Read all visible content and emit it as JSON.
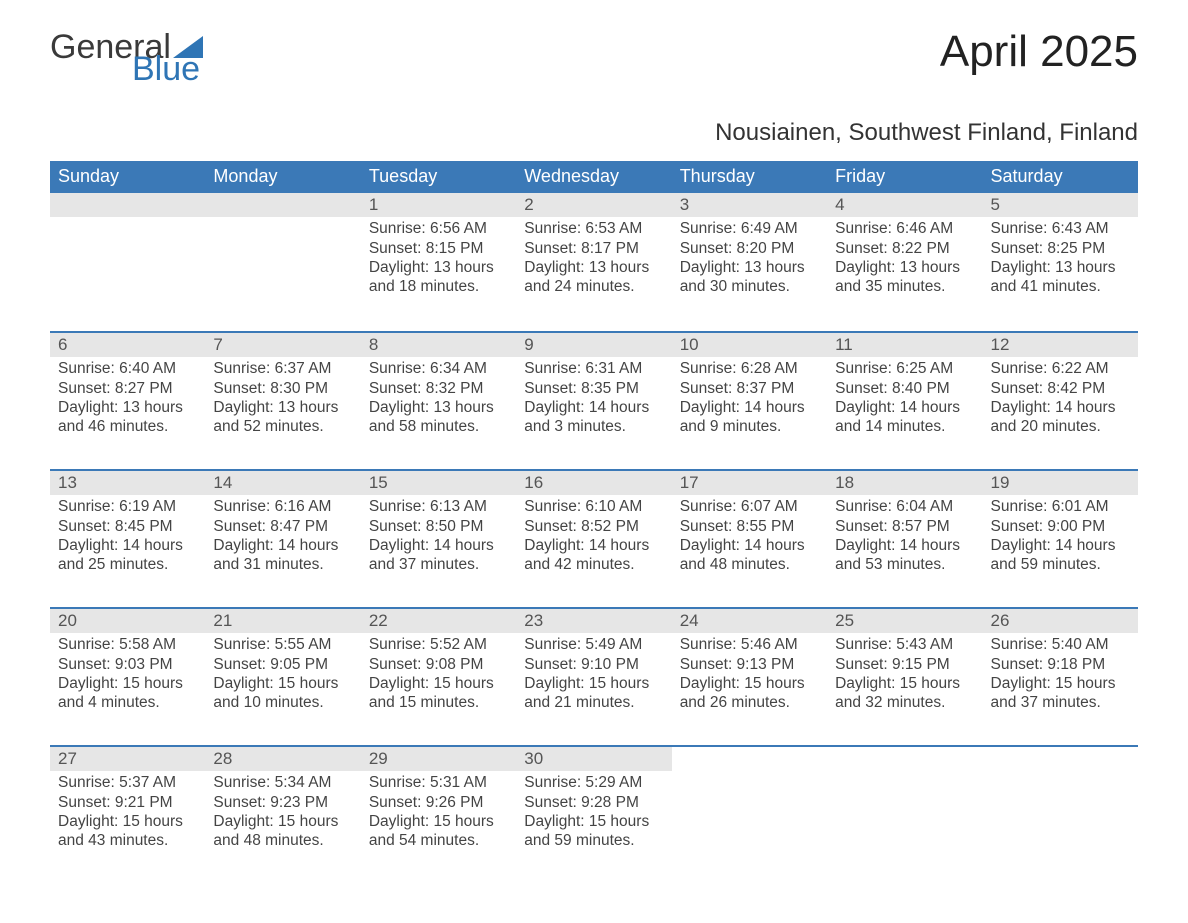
{
  "branding": {
    "logo_text_1": "General",
    "logo_text_2": "Blue",
    "logo_color_1": "#3a3a3a",
    "logo_color_2": "#2f75b5",
    "triangle_color": "#2f75b5"
  },
  "title": "April 2025",
  "location": "Nousiainen, Southwest Finland, Finland",
  "theme": {
    "header_bg": "#3b79b7",
    "header_fg": "#ffffff",
    "daynum_bg": "#e6e6e6",
    "daynum_fg": "#555555",
    "rule_color": "#3b79b7",
    "body_text": "#444444",
    "background": "#ffffff",
    "title_fontsize": 44,
    "location_fontsize": 24,
    "dow_fontsize": 18,
    "body_fontsize": 15.5
  },
  "day_headers": [
    "Sunday",
    "Monday",
    "Tuesday",
    "Wednesday",
    "Thursday",
    "Friday",
    "Saturday"
  ],
  "weeks": [
    [
      {
        "n": "",
        "l1": "",
        "l2": "",
        "l3": "",
        "l4": ""
      },
      {
        "n": "",
        "l1": "",
        "l2": "",
        "l3": "",
        "l4": ""
      },
      {
        "n": "1",
        "l1": "Sunrise: 6:56 AM",
        "l2": "Sunset: 8:15 PM",
        "l3": "Daylight: 13 hours",
        "l4": "and 18 minutes."
      },
      {
        "n": "2",
        "l1": "Sunrise: 6:53 AM",
        "l2": "Sunset: 8:17 PM",
        "l3": "Daylight: 13 hours",
        "l4": "and 24 minutes."
      },
      {
        "n": "3",
        "l1": "Sunrise: 6:49 AM",
        "l2": "Sunset: 8:20 PM",
        "l3": "Daylight: 13 hours",
        "l4": "and 30 minutes."
      },
      {
        "n": "4",
        "l1": "Sunrise: 6:46 AM",
        "l2": "Sunset: 8:22 PM",
        "l3": "Daylight: 13 hours",
        "l4": "and 35 minutes."
      },
      {
        "n": "5",
        "l1": "Sunrise: 6:43 AM",
        "l2": "Sunset: 8:25 PM",
        "l3": "Daylight: 13 hours",
        "l4": "and 41 minutes."
      }
    ],
    [
      {
        "n": "6",
        "l1": "Sunrise: 6:40 AM",
        "l2": "Sunset: 8:27 PM",
        "l3": "Daylight: 13 hours",
        "l4": "and 46 minutes."
      },
      {
        "n": "7",
        "l1": "Sunrise: 6:37 AM",
        "l2": "Sunset: 8:30 PM",
        "l3": "Daylight: 13 hours",
        "l4": "and 52 minutes."
      },
      {
        "n": "8",
        "l1": "Sunrise: 6:34 AM",
        "l2": "Sunset: 8:32 PM",
        "l3": "Daylight: 13 hours",
        "l4": "and 58 minutes."
      },
      {
        "n": "9",
        "l1": "Sunrise: 6:31 AM",
        "l2": "Sunset: 8:35 PM",
        "l3": "Daylight: 14 hours",
        "l4": "and 3 minutes."
      },
      {
        "n": "10",
        "l1": "Sunrise: 6:28 AM",
        "l2": "Sunset: 8:37 PM",
        "l3": "Daylight: 14 hours",
        "l4": "and 9 minutes."
      },
      {
        "n": "11",
        "l1": "Sunrise: 6:25 AM",
        "l2": "Sunset: 8:40 PM",
        "l3": "Daylight: 14 hours",
        "l4": "and 14 minutes."
      },
      {
        "n": "12",
        "l1": "Sunrise: 6:22 AM",
        "l2": "Sunset: 8:42 PM",
        "l3": "Daylight: 14 hours",
        "l4": "and 20 minutes."
      }
    ],
    [
      {
        "n": "13",
        "l1": "Sunrise: 6:19 AM",
        "l2": "Sunset: 8:45 PM",
        "l3": "Daylight: 14 hours",
        "l4": "and 25 minutes."
      },
      {
        "n": "14",
        "l1": "Sunrise: 6:16 AM",
        "l2": "Sunset: 8:47 PM",
        "l3": "Daylight: 14 hours",
        "l4": "and 31 minutes."
      },
      {
        "n": "15",
        "l1": "Sunrise: 6:13 AM",
        "l2": "Sunset: 8:50 PM",
        "l3": "Daylight: 14 hours",
        "l4": "and 37 minutes."
      },
      {
        "n": "16",
        "l1": "Sunrise: 6:10 AM",
        "l2": "Sunset: 8:52 PM",
        "l3": "Daylight: 14 hours",
        "l4": "and 42 minutes."
      },
      {
        "n": "17",
        "l1": "Sunrise: 6:07 AM",
        "l2": "Sunset: 8:55 PM",
        "l3": "Daylight: 14 hours",
        "l4": "and 48 minutes."
      },
      {
        "n": "18",
        "l1": "Sunrise: 6:04 AM",
        "l2": "Sunset: 8:57 PM",
        "l3": "Daylight: 14 hours",
        "l4": "and 53 minutes."
      },
      {
        "n": "19",
        "l1": "Sunrise: 6:01 AM",
        "l2": "Sunset: 9:00 PM",
        "l3": "Daylight: 14 hours",
        "l4": "and 59 minutes."
      }
    ],
    [
      {
        "n": "20",
        "l1": "Sunrise: 5:58 AM",
        "l2": "Sunset: 9:03 PM",
        "l3": "Daylight: 15 hours",
        "l4": "and 4 minutes."
      },
      {
        "n": "21",
        "l1": "Sunrise: 5:55 AM",
        "l2": "Sunset: 9:05 PM",
        "l3": "Daylight: 15 hours",
        "l4": "and 10 minutes."
      },
      {
        "n": "22",
        "l1": "Sunrise: 5:52 AM",
        "l2": "Sunset: 9:08 PM",
        "l3": "Daylight: 15 hours",
        "l4": "and 15 minutes."
      },
      {
        "n": "23",
        "l1": "Sunrise: 5:49 AM",
        "l2": "Sunset: 9:10 PM",
        "l3": "Daylight: 15 hours",
        "l4": "and 21 minutes."
      },
      {
        "n": "24",
        "l1": "Sunrise: 5:46 AM",
        "l2": "Sunset: 9:13 PM",
        "l3": "Daylight: 15 hours",
        "l4": "and 26 minutes."
      },
      {
        "n": "25",
        "l1": "Sunrise: 5:43 AM",
        "l2": "Sunset: 9:15 PM",
        "l3": "Daylight: 15 hours",
        "l4": "and 32 minutes."
      },
      {
        "n": "26",
        "l1": "Sunrise: 5:40 AM",
        "l2": "Sunset: 9:18 PM",
        "l3": "Daylight: 15 hours",
        "l4": "and 37 minutes."
      }
    ],
    [
      {
        "n": "27",
        "l1": "Sunrise: 5:37 AM",
        "l2": "Sunset: 9:21 PM",
        "l3": "Daylight: 15 hours",
        "l4": "and 43 minutes."
      },
      {
        "n": "28",
        "l1": "Sunrise: 5:34 AM",
        "l2": "Sunset: 9:23 PM",
        "l3": "Daylight: 15 hours",
        "l4": "and 48 minutes."
      },
      {
        "n": "29",
        "l1": "Sunrise: 5:31 AM",
        "l2": "Sunset: 9:26 PM",
        "l3": "Daylight: 15 hours",
        "l4": "and 54 minutes."
      },
      {
        "n": "30",
        "l1": "Sunrise: 5:29 AM",
        "l2": "Sunset: 9:28 PM",
        "l3": "Daylight: 15 hours",
        "l4": "and 59 minutes."
      },
      {
        "n": "",
        "l1": "",
        "l2": "",
        "l3": "",
        "l4": ""
      },
      {
        "n": "",
        "l1": "",
        "l2": "",
        "l3": "",
        "l4": ""
      },
      {
        "n": "",
        "l1": "",
        "l2": "",
        "l3": "",
        "l4": ""
      }
    ]
  ]
}
